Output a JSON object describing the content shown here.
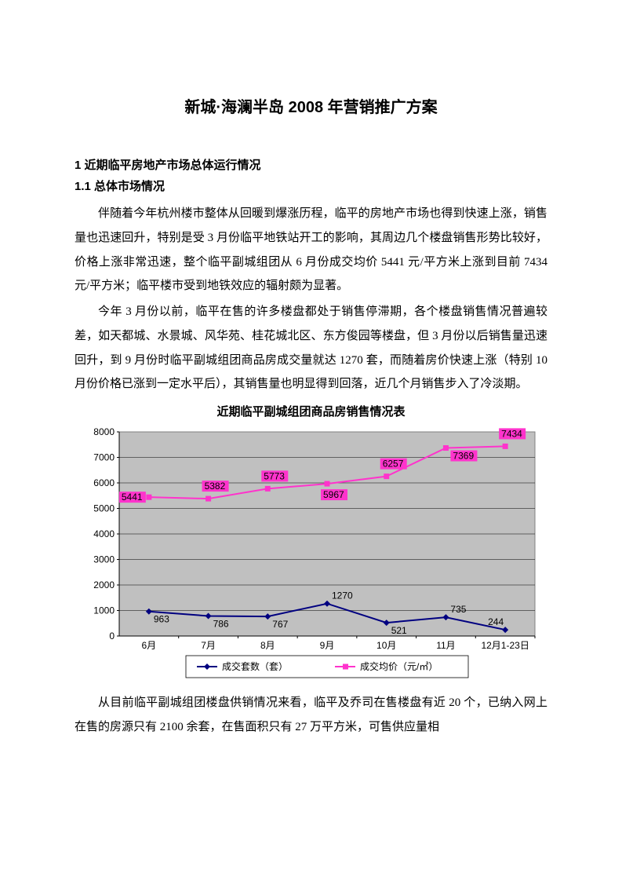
{
  "title": "新城·海澜半岛 2008 年营销推广方案",
  "section1": "1 近期临平房地产市场总体运行情况",
  "section1_1": "1.1 总体市场情况",
  "para1": "伴随着今年杭州楼市整体从回暖到爆涨历程，临平的房地产市场也得到快速上涨，销售量也迅速回升，特别是受 3 月份临平地铁站开工的影响，其周边几个楼盘销售形势比较好，价格上涨非常迅速，整个临平副城组团从 6 月份成交均价 5441 元/平方米上涨到目前 7434 元/平方米；临平楼市受到地铁效应的辐射颇为显著。",
  "para2": "今年 3 月份以前，临平在售的许多楼盘都处于销售停滞期，各个楼盘销售情况普遍较差，如天都城、水景城、风华苑、桂花城北区、东方俊园等楼盘，但 3 月份以后销售量迅速回升，到 9 月份时临平副城组团商品房成交量就达 1270 套，而随着房价快速上涨（特别 10 月份价格已涨到一定水平后），其销售量也明显得到回落，近几个月销售步入了冷淡期。",
  "chart_title": "近期临平副城组团商品房销售情况表",
  "para3": "从目前临平副城组团楼盘供销情况来看，临平及乔司在售楼盘有近 20 个，已纳入网上在售的房源只有 2100 余套，在售面积只有 27 万平方米，可售供应量相",
  "chart": {
    "type": "line",
    "categories": [
      "6月",
      "7月",
      "8月",
      "9月",
      "10月",
      "11月",
      "12月1-23日"
    ],
    "y_min": 0,
    "y_max": 8000,
    "y_step": 1000,
    "plot_bg": "#c0c0c0",
    "grid_color": "#000000",
    "border_color": "#808080",
    "series": [
      {
        "name": "成交套数（套）",
        "values": [
          963,
          786,
          767,
          1270,
          521,
          735,
          244
        ],
        "color": "#000080",
        "marker": "diamond",
        "label_bg": null
      },
      {
        "name": "成交均价（元/㎡）",
        "values": [
          5441,
          5382,
          5773,
          5967,
          6257,
          7369,
          7434
        ],
        "color": "#ff33cc",
        "marker": "square",
        "label_bg": "#ff33cc"
      }
    ],
    "legend_labels": [
      "成交套数（套）",
      "成交均价（元/㎡）"
    ],
    "legend_marker_glyphs": [
      "◆",
      "■"
    ]
  }
}
